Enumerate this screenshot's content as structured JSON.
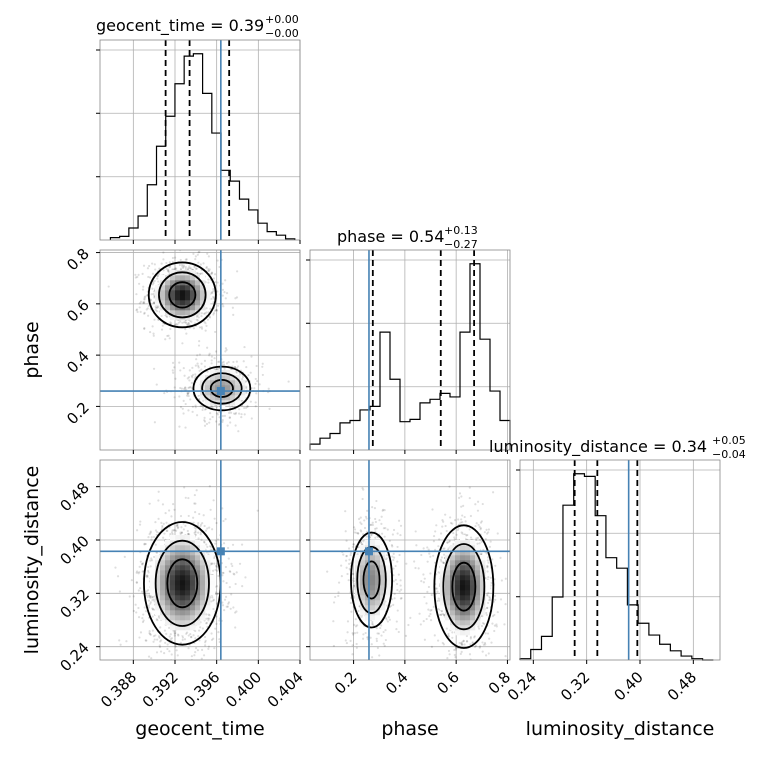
{
  "chart_data": {
    "type": "corner",
    "parameters": [
      "geocent_time",
      "phase",
      "luminosity_distance"
    ],
    "truth": {
      "geocent_time": 0.3964,
      "phase": 0.26,
      "luminosity_distance": 0.383
    },
    "titles": {
      "geocent_time": {
        "prefix": "geocent_time = 0.39",
        "sup": "+0.00",
        "sub": "−0.00"
      },
      "phase": {
        "prefix": "phase = 0.54",
        "sup": "+0.13",
        "sub": "−0.27"
      },
      "luminosity_distance": {
        "prefix": "luminosity_distance = 0.34",
        "sup": "+0.05",
        "sub": "−0.04"
      }
    },
    "axes": {
      "geocent_time": {
        "range": [
          0.3848,
          0.404
        ],
        "ticks": [
          0.388,
          0.392,
          0.396,
          0.4,
          0.404
        ],
        "tick_labels": [
          "0.388",
          "0.392",
          "0.396",
          "0.400",
          "0.404"
        ]
      },
      "phase": {
        "range": [
          0.03,
          0.81
        ],
        "ticks": [
          0.2,
          0.4,
          0.6,
          0.8
        ],
        "tick_labels": [
          "0.2",
          "0.4",
          "0.6",
          "0.8"
        ]
      },
      "luminosity_distance": {
        "range": [
          0.22,
          0.52
        ],
        "ticks": [
          0.24,
          0.32,
          0.4,
          0.48
        ],
        "tick_labels": [
          "0.24",
          "0.32",
          "0.40",
          "0.48"
        ]
      }
    },
    "quantiles": {
      "geocent_time": [
        0.3911,
        0.3934,
        0.3972
      ],
      "phase": [
        0.275,
        0.54,
        0.67
      ],
      "luminosity_distance": [
        0.302,
        0.336,
        0.396
      ]
    },
    "marginals": {
      "geocent_time": {
        "edges_range": [
          0.3858,
          0.4035
        ],
        "counts": [
          2,
          3,
          10,
          20,
          46,
          78,
          103,
          130,
          153,
          155,
          122,
          89,
          58,
          49,
          34,
          25,
          14,
          7,
          4,
          1
        ]
      },
      "phase": {
        "edges_range": [
          0.03,
          0.81
        ],
        "counts": [
          5,
          10,
          14,
          23,
          25,
          34,
          37,
          100,
          60,
          24,
          26,
          40,
          43,
          48,
          45,
          100,
          158,
          94,
          50,
          25
        ]
      },
      "luminosity_distance": {
        "edges_range": [
          0.22,
          0.51
        ],
        "counts": [
          1,
          8,
          18,
          48,
          118,
          142,
          140,
          110,
          78,
          70,
          42,
          28,
          19,
          12,
          7,
          3,
          1,
          0
        ]
      }
    },
    "pair_panels": [
      {
        "x": "geocent_time",
        "y": "phase",
        "modes": [
          {
            "cx": 0.3927,
            "cy": 0.635,
            "sx": 0.0014,
            "sy": 0.055,
            "w": 1.0
          },
          {
            "cx": 0.3965,
            "cy": 0.27,
            "sx": 0.0016,
            "sy": 0.05,
            "w": 0.55
          }
        ]
      },
      {
        "x": "geocent_time",
        "y": "luminosity_distance",
        "modes": [
          {
            "cx": 0.3927,
            "cy": 0.335,
            "sx": 0.0016,
            "sy": 0.04,
            "w": 1.0
          }
        ]
      },
      {
        "x": "phase",
        "y": "luminosity_distance",
        "modes": [
          {
            "cx": 0.63,
            "cy": 0.33,
            "sx": 0.05,
            "sy": 0.04,
            "w": 1.0
          },
          {
            "cx": 0.27,
            "cy": 0.34,
            "sx": 0.045,
            "sy": 0.04,
            "w": 0.6
          }
        ]
      }
    ],
    "axis_labels": {
      "x": [
        "geocent_time",
        "phase",
        "luminosity_distance"
      ],
      "y": [
        "phase",
        "luminosity_distance"
      ]
    },
    "grid": true
  }
}
